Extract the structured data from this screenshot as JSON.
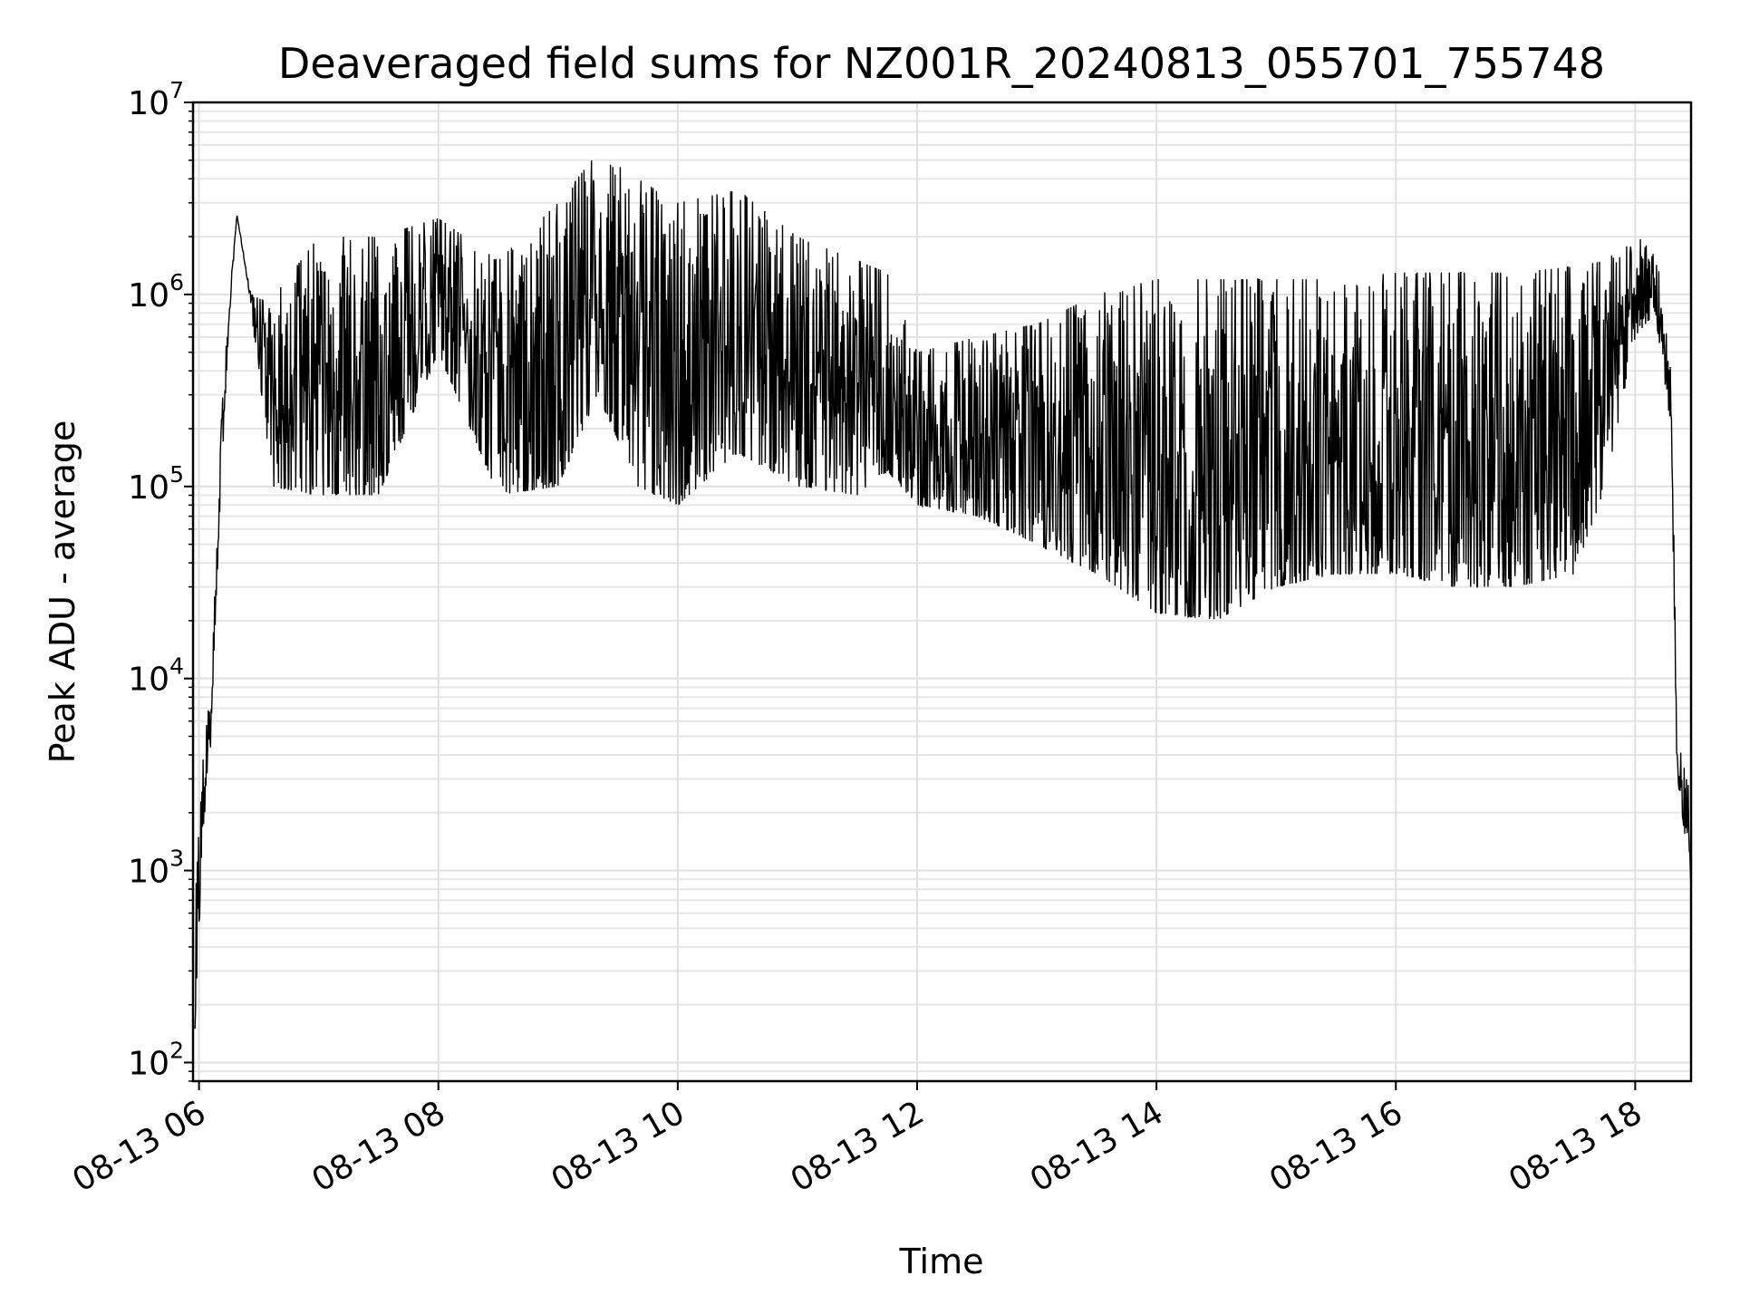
{
  "chart_data": {
    "type": "line",
    "title": "Deaveraged field sums for NZ001R_20240813_055701_755748",
    "xlabel": "Time",
    "ylabel": "Peak ADU - average",
    "yscale": "log",
    "ylim": [
      80,
      10000000
    ],
    "xlim": [
      "2024-08-13 05:57",
      "2024-08-13 18:28"
    ],
    "grid": true,
    "line_color": "#000000",
    "x_ticks": [
      {
        "label": "08-13 06",
        "value": "2024-08-13 06:00"
      },
      {
        "label": "08-13 08",
        "value": "2024-08-13 08:00"
      },
      {
        "label": "08-13 10",
        "value": "2024-08-13 10:00"
      },
      {
        "label": "08-13 12",
        "value": "2024-08-13 12:00"
      },
      {
        "label": "08-13 14",
        "value": "2024-08-13 14:00"
      },
      {
        "label": "08-13 16",
        "value": "2024-08-13 16:00"
      },
      {
        "label": "08-13 18",
        "value": "2024-08-13 18:00"
      }
    ],
    "y_ticks": [
      {
        "base": "10",
        "exp": "2",
        "value": 100
      },
      {
        "base": "10",
        "exp": "3",
        "value": 1000
      },
      {
        "base": "10",
        "exp": "4",
        "value": 10000
      },
      {
        "base": "10",
        "exp": "5",
        "value": 100000
      },
      {
        "base": "10",
        "exp": "6",
        "value": 1000000
      },
      {
        "base": "10",
        "exp": "7",
        "value": 10000000
      }
    ],
    "series": [
      {
        "style": "dense-oscillating",
        "envelope": [
          {
            "t": "05:58",
            "low": 150,
            "high": 1000
          },
          {
            "t": "06:02",
            "low": 1500,
            "high": 4000
          },
          {
            "t": "06:06",
            "low": 4500,
            "high": 9000
          },
          {
            "t": "06:10",
            "low": 60000,
            "high": 150000
          },
          {
            "t": "06:15",
            "low": 700000,
            "high": 900000
          },
          {
            "t": "06:19",
            "low": 2600000,
            "high": 2600000
          },
          {
            "t": "06:26",
            "low": 900000,
            "high": 1000000
          },
          {
            "t": "06:35",
            "low": 100000,
            "high": 900000
          },
          {
            "t": "07:00",
            "low": 90000,
            "high": 2000000
          },
          {
            "t": "07:30",
            "low": 90000,
            "high": 2000000
          },
          {
            "t": "08:00",
            "low": 500000,
            "high": 2500000
          },
          {
            "t": "08:30",
            "low": 90000,
            "high": 1500000
          },
          {
            "t": "09:00",
            "low": 100000,
            "high": 3000000
          },
          {
            "t": "09:20",
            "low": 300000,
            "high": 5500000
          },
          {
            "t": "09:40",
            "low": 100000,
            "high": 4000000
          },
          {
            "t": "10:00",
            "low": 80000,
            "high": 3000000
          },
          {
            "t": "10:30",
            "low": 150000,
            "high": 3500000
          },
          {
            "t": "11:00",
            "low": 100000,
            "high": 2000000
          },
          {
            "t": "11:30",
            "low": 90000,
            "high": 1500000
          },
          {
            "t": "11:45",
            "low": 120000,
            "high": 1300000
          },
          {
            "t": "12:00",
            "low": 80000,
            "high": 500000
          },
          {
            "t": "12:30",
            "low": 70000,
            "high": 600000
          },
          {
            "t": "13:00",
            "low": 50000,
            "high": 700000
          },
          {
            "t": "13:30",
            "low": 35000,
            "high": 1000000
          },
          {
            "t": "14:00",
            "low": 22000,
            "high": 1200000
          },
          {
            "t": "14:30",
            "low": 20000,
            "high": 1200000
          },
          {
            "t": "15:00",
            "low": 30000,
            "high": 1200000
          },
          {
            "t": "15:30",
            "low": 35000,
            "high": 1200000
          },
          {
            "t": "16:00",
            "low": 35000,
            "high": 1300000
          },
          {
            "t": "16:30",
            "low": 30000,
            "high": 1300000
          },
          {
            "t": "17:00",
            "low": 30000,
            "high": 1300000
          },
          {
            "t": "17:30",
            "low": 35000,
            "high": 1400000
          },
          {
            "t": "17:45",
            "low": 100000,
            "high": 1500000
          },
          {
            "t": "18:00",
            "low": 600000,
            "high": 2000000
          },
          {
            "t": "18:10",
            "low": 800000,
            "high": 2000000
          },
          {
            "t": "18:18",
            "low": 200000,
            "high": 400000
          },
          {
            "t": "18:21",
            "low": 3000,
            "high": 5000
          },
          {
            "t": "18:25",
            "low": 1500,
            "high": 4000
          },
          {
            "t": "18:28",
            "low": 800,
            "high": 2000
          }
        ]
      }
    ]
  }
}
